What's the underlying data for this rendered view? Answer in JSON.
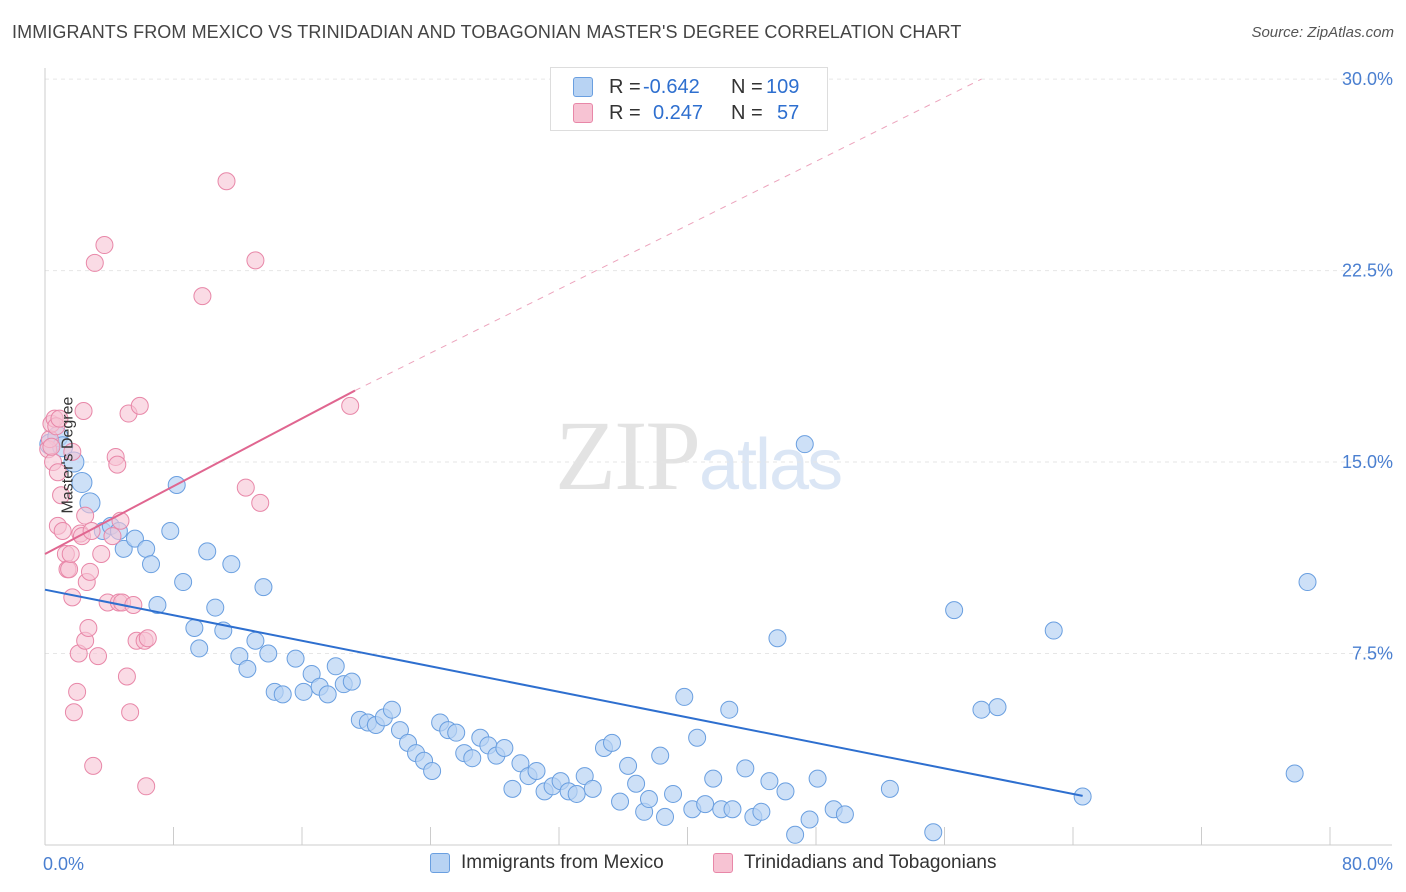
{
  "title": "IMMIGRANTS FROM MEXICO VS TRINIDADIAN AND TOBAGONIAN MASTER'S DEGREE CORRELATION CHART",
  "source": "Source: ZipAtlas.com",
  "watermark": {
    "zip": "ZIP",
    "atlas": "atlas"
  },
  "stats": {
    "r_label": "R =",
    "n_label": "N =",
    "series1": {
      "r": "-0.642",
      "n": "109"
    },
    "series2": {
      "r": "0.247",
      "n": "57"
    }
  },
  "legend": {
    "series1": "Immigrants from Mexico",
    "series2": "Trinidadians and Tobagonians"
  },
  "colors": {
    "series1_fill": "#b8d3f3",
    "series1_stroke": "#6a9fe0",
    "series1_line": "#2e6fcf",
    "series2_fill": "#f7c3d3",
    "series2_stroke": "#e887a8",
    "series2_line": "#e06690",
    "axis_text": "#4a7fd0"
  },
  "chart_data": {
    "type": "scatter",
    "xlabel": "",
    "ylabel": "Master's Degree",
    "xlim": [
      0,
      80
    ],
    "ylim": [
      0,
      30
    ],
    "x_tick_labels": [
      "0.0%",
      "80.0%"
    ],
    "y_ticks": [
      7.5,
      15.0,
      22.5,
      30.0
    ],
    "y_tick_labels": [
      "7.5%",
      "15.0%",
      "22.5%",
      "30.0%"
    ],
    "grid": true,
    "legend_position": "bottom",
    "series": [
      {
        "name": "Immigrants from Mexico",
        "trend": {
          "x": [
            0,
            80
          ],
          "y": [
            10.0,
            0.0
          ],
          "dashed": false
        },
        "points": [
          [
            0.3,
            15.7
          ],
          [
            0.8,
            16.0
          ],
          [
            1.1,
            15.6
          ],
          [
            1.8,
            15.0
          ],
          [
            2.3,
            14.2
          ],
          [
            2.8,
            13.4
          ],
          [
            3.6,
            12.3
          ],
          [
            4.1,
            12.5
          ],
          [
            4.6,
            12.3
          ],
          [
            4.9,
            11.6
          ],
          [
            5.6,
            12.0
          ],
          [
            6.3,
            11.6
          ],
          [
            6.6,
            11.0
          ],
          [
            7.0,
            9.4
          ],
          [
            7.8,
            12.3
          ],
          [
            8.2,
            14.1
          ],
          [
            8.6,
            10.3
          ],
          [
            9.3,
            8.5
          ],
          [
            9.6,
            7.7
          ],
          [
            10.1,
            11.5
          ],
          [
            10.6,
            9.3
          ],
          [
            11.1,
            8.4
          ],
          [
            11.6,
            11.0
          ],
          [
            12.1,
            7.4
          ],
          [
            12.6,
            6.9
          ],
          [
            13.1,
            8.0
          ],
          [
            13.6,
            10.1
          ],
          [
            13.9,
            7.5
          ],
          [
            14.3,
            6.0
          ],
          [
            14.8,
            5.9
          ],
          [
            15.6,
            7.3
          ],
          [
            16.1,
            6.0
          ],
          [
            16.6,
            6.7
          ],
          [
            17.1,
            6.2
          ],
          [
            17.6,
            5.9
          ],
          [
            18.1,
            7.0
          ],
          [
            18.6,
            6.3
          ],
          [
            19.1,
            6.4
          ],
          [
            19.6,
            4.9
          ],
          [
            20.1,
            4.8
          ],
          [
            20.6,
            4.7
          ],
          [
            21.1,
            5.0
          ],
          [
            21.6,
            5.3
          ],
          [
            22.1,
            4.5
          ],
          [
            22.6,
            4.0
          ],
          [
            23.1,
            3.6
          ],
          [
            23.6,
            3.3
          ],
          [
            24.1,
            2.9
          ],
          [
            24.6,
            4.8
          ],
          [
            25.1,
            4.5
          ],
          [
            25.6,
            4.4
          ],
          [
            26.1,
            3.6
          ],
          [
            26.6,
            3.4
          ],
          [
            27.1,
            4.2
          ],
          [
            27.6,
            3.9
          ],
          [
            28.1,
            3.5
          ],
          [
            28.6,
            3.8
          ],
          [
            29.1,
            2.2
          ],
          [
            29.6,
            3.2
          ],
          [
            30.1,
            2.7
          ],
          [
            30.6,
            2.9
          ],
          [
            31.1,
            2.1
          ],
          [
            31.6,
            2.3
          ],
          [
            32.1,
            2.5
          ],
          [
            32.6,
            2.1
          ],
          [
            33.1,
            2.0
          ],
          [
            33.6,
            2.7
          ],
          [
            34.1,
            2.2
          ],
          [
            34.8,
            3.8
          ],
          [
            35.3,
            4.0
          ],
          [
            35.8,
            1.7
          ],
          [
            36.3,
            3.1
          ],
          [
            36.8,
            2.4
          ],
          [
            37.3,
            1.3
          ],
          [
            37.6,
            1.8
          ],
          [
            38.3,
            3.5
          ],
          [
            38.6,
            1.1
          ],
          [
            39.1,
            2.0
          ],
          [
            39.8,
            5.8
          ],
          [
            40.3,
            1.4
          ],
          [
            40.6,
            4.2
          ],
          [
            41.1,
            1.6
          ],
          [
            41.6,
            2.6
          ],
          [
            42.1,
            1.4
          ],
          [
            42.6,
            5.3
          ],
          [
            42.8,
            1.4
          ],
          [
            43.6,
            3.0
          ],
          [
            44.1,
            1.1
          ],
          [
            44.6,
            1.3
          ],
          [
            45.1,
            2.5
          ],
          [
            45.6,
            8.1
          ],
          [
            46.1,
            2.1
          ],
          [
            46.7,
            0.4
          ],
          [
            47.3,
            15.7
          ],
          [
            47.6,
            1.0
          ],
          [
            48.1,
            2.6
          ],
          [
            49.1,
            1.4
          ],
          [
            49.8,
            1.2
          ],
          [
            52.6,
            2.2
          ],
          [
            55.3,
            0.5
          ],
          [
            56.6,
            9.2
          ],
          [
            58.3,
            5.3
          ],
          [
            59.3,
            5.4
          ],
          [
            62.8,
            8.4
          ],
          [
            64.6,
            1.9
          ],
          [
            77.8,
            2.8
          ],
          [
            78.6,
            10.3
          ]
        ]
      },
      {
        "name": "Trinidadians and Tobagonians",
        "trend": {
          "x": [
            0,
            19.3
          ],
          "y": [
            11.4,
            17.8
          ],
          "dashed_extension_to": [
            58.3,
            30.0
          ]
        },
        "points": [
          [
            0.2,
            15.5
          ],
          [
            0.3,
            15.9
          ],
          [
            0.4,
            16.5
          ],
          [
            0.5,
            15.0
          ],
          [
            0.6,
            16.7
          ],
          [
            0.7,
            16.4
          ],
          [
            0.8,
            12.5
          ],
          [
            0.8,
            14.6
          ],
          [
            0.9,
            16.7
          ],
          [
            1.0,
            13.7
          ],
          [
            1.1,
            12.3
          ],
          [
            1.3,
            11.4
          ],
          [
            1.4,
            10.8
          ],
          [
            1.5,
            10.8
          ],
          [
            1.6,
            11.4
          ],
          [
            1.7,
            9.7
          ],
          [
            1.7,
            15.4
          ],
          [
            1.8,
            5.2
          ],
          [
            2.0,
            6.0
          ],
          [
            2.1,
            7.5
          ],
          [
            2.2,
            12.2
          ],
          [
            2.3,
            12.1
          ],
          [
            2.4,
            17.0
          ],
          [
            2.5,
            12.9
          ],
          [
            2.5,
            8.0
          ],
          [
            2.6,
            10.3
          ],
          [
            2.7,
            8.5
          ],
          [
            2.8,
            10.7
          ],
          [
            2.9,
            12.3
          ],
          [
            3.0,
            3.1
          ],
          [
            3.1,
            22.8
          ],
          [
            3.3,
            7.4
          ],
          [
            3.5,
            11.4
          ],
          [
            3.7,
            23.5
          ],
          [
            3.9,
            9.5
          ],
          [
            4.2,
            12.1
          ],
          [
            4.4,
            15.2
          ],
          [
            4.5,
            14.9
          ],
          [
            4.6,
            9.5
          ],
          [
            4.7,
            12.7
          ],
          [
            4.8,
            9.5
          ],
          [
            5.1,
            6.6
          ],
          [
            5.2,
            16.9
          ],
          [
            5.3,
            5.2
          ],
          [
            5.5,
            9.4
          ],
          [
            5.7,
            8.0
          ],
          [
            5.9,
            17.2
          ],
          [
            6.2,
            8.0
          ],
          [
            6.3,
            2.3
          ],
          [
            6.4,
            8.1
          ],
          [
            9.8,
            21.5
          ],
          [
            11.3,
            26.0
          ],
          [
            12.5,
            14.0
          ],
          [
            13.1,
            22.9
          ],
          [
            13.4,
            13.4
          ],
          [
            19.0,
            17.2
          ],
          [
            0.4,
            15.6
          ]
        ]
      }
    ]
  }
}
